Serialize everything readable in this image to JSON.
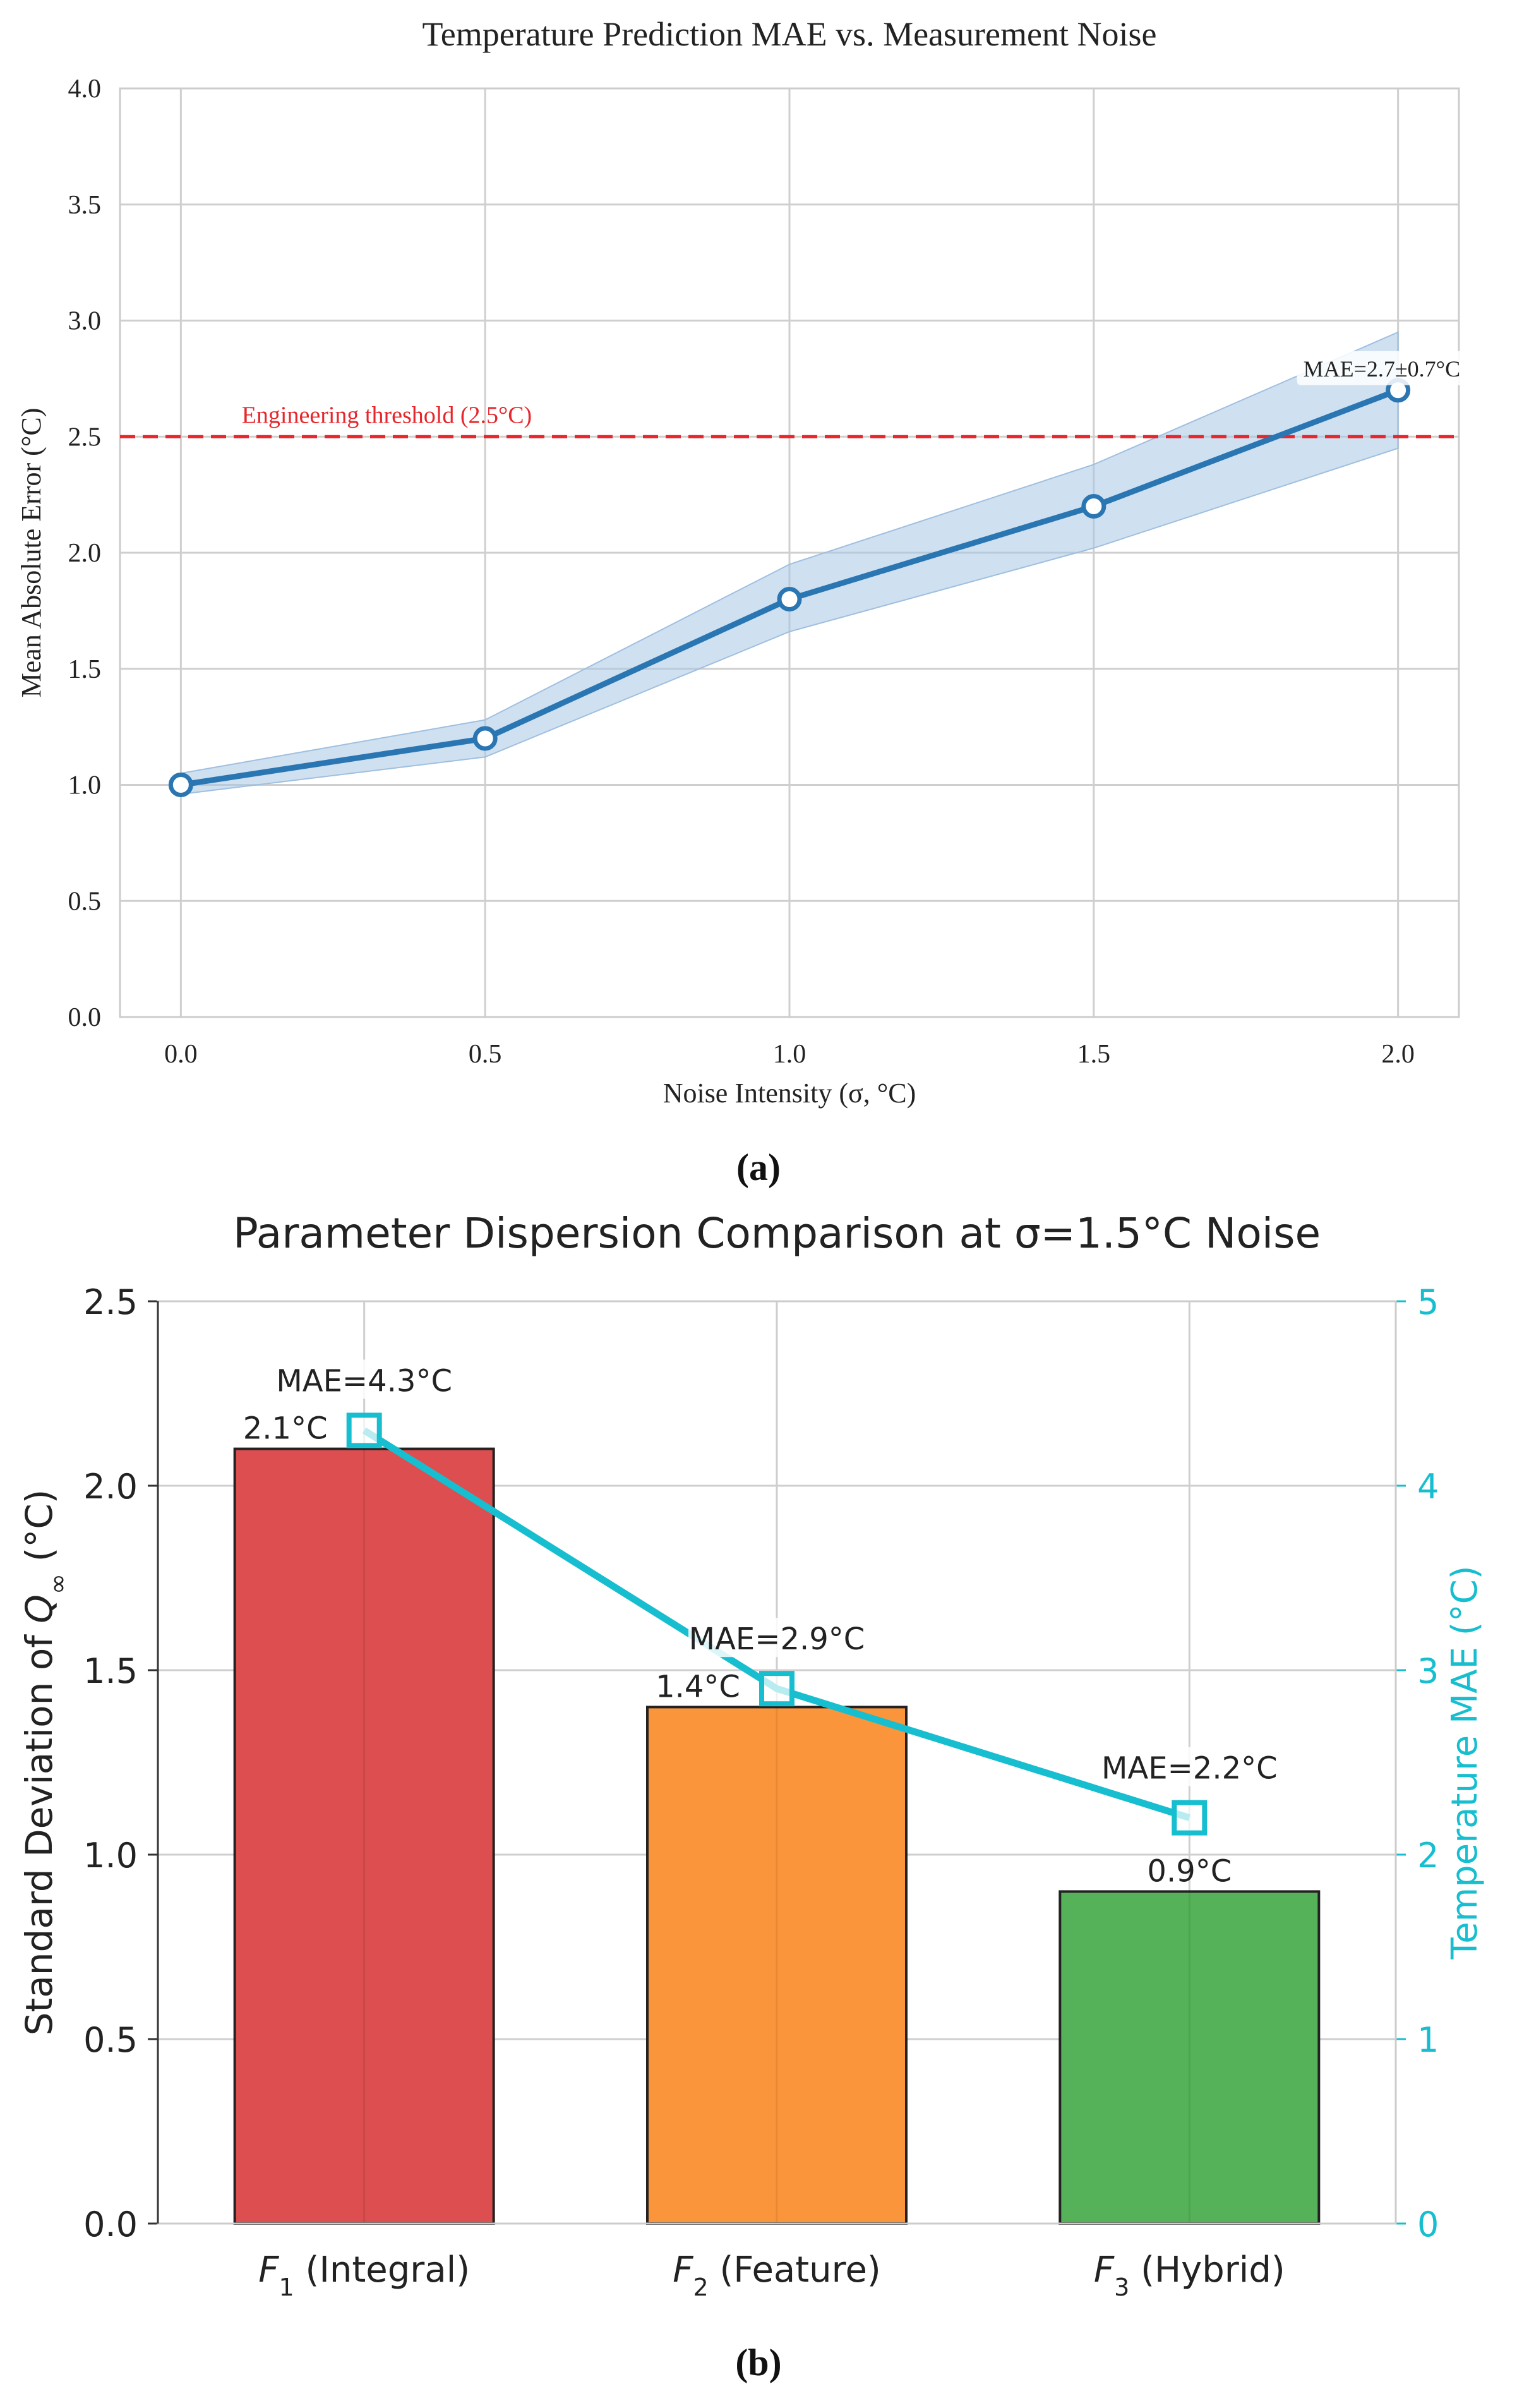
{
  "panel_labels": {
    "a": "(a)",
    "b": "(b)"
  },
  "chart_data": [
    {
      "type": "line",
      "title": "Temperature Prediction MAE vs. Measurement Noise",
      "xlabel": "Noise Intensity (σ, °C)",
      "ylabel": "Mean Absolute Error (°C)",
      "xlim": [
        -0.1,
        2.1
      ],
      "ylim": [
        0,
        4.0
      ],
      "x_ticks": [
        "0.0",
        "0.5",
        "1.0",
        "1.5",
        "2.0"
      ],
      "y_ticks": [
        "0.0",
        "0.5",
        "1.0",
        "1.5",
        "2.0",
        "2.5",
        "3.0",
        "3.5",
        "4.0"
      ],
      "grid": true,
      "x": [
        0.0,
        0.5,
        1.0,
        1.5,
        2.0
      ],
      "y": [
        1.0,
        1.2,
        1.8,
        2.2,
        2.7
      ],
      "band_lower": [
        0.96,
        1.12,
        1.66,
        2.02,
        2.45
      ],
      "band_upper": [
        1.05,
        1.28,
        1.95,
        2.38,
        2.95
      ],
      "threshold": {
        "value": 2.5,
        "label": "Engineering threshold (2.5°C)",
        "color": "#e8252a"
      },
      "annotation": "MAE=2.7±0.7°C",
      "line_color": "#2a76b3",
      "band_color": "#a7c6e3"
    },
    {
      "type": "bar",
      "title": "Parameter Dispersion Comparison at σ=1.5°C Noise",
      "ylabel_prefix": "Standard Deviation of ",
      "ylabel_symbol": "Q",
      "ylabel_sub": "∞",
      "ylabel_suffix": " (°C)",
      "y2label": "Temperature MAE (°C)",
      "ylim": [
        0,
        2.5
      ],
      "y2lim": [
        0,
        5
      ],
      "y_ticks": [
        "0.0",
        "0.5",
        "1.0",
        "1.5",
        "2.0",
        "2.5"
      ],
      "y2_ticks": [
        "0",
        "1",
        "2",
        "3",
        "4",
        "5"
      ],
      "grid": true,
      "categories": [
        {
          "sym": "F",
          "sub": "1",
          "rest": " (Integral)"
        },
        {
          "sym": "F",
          "sub": "2",
          "rest": " (Feature)"
        },
        {
          "sym": "F",
          "sub": "3",
          "rest": " (Hybrid)"
        }
      ],
      "values": [
        2.1,
        1.4,
        0.9
      ],
      "value_labels": [
        "2.1°C",
        "1.4°C",
        "0.9°C"
      ],
      "bar_colors": [
        "#dc4e4f",
        "#fb953c",
        "#55b258"
      ],
      "mae_values": [
        4.3,
        2.9,
        2.2
      ],
      "mae_labels": [
        "MAE=4.3°C",
        "MAE=2.9°C",
        "MAE=2.2°C"
      ],
      "mae_color": "#17becf"
    }
  ]
}
